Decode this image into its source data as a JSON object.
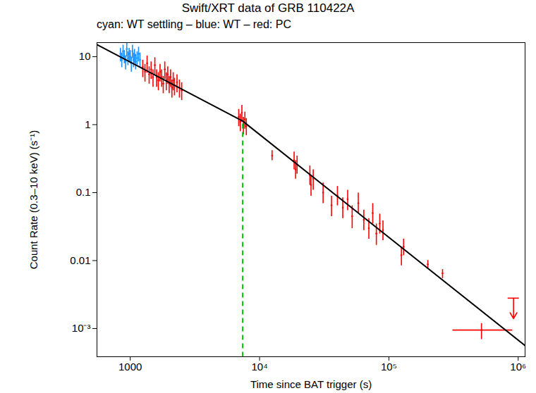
{
  "chart_data": {
    "type": "scatter",
    "title": "Swift/XRT data of GRB 110422A",
    "subtitle": "cyan: WT settling – blue: WT – red: PC",
    "x_label": "Time since BAT trigger (s)",
    "y_label": "Count Rate (0.3–10 keV) (s⁻¹)",
    "log": true,
    "grid": false,
    "xlim": [
      553,
      1130000
    ],
    "ylim": [
      0.000385,
      16.1
    ],
    "xticks": [
      1000,
      {
        "value": 10000,
        "label": "10⁴"
      },
      {
        "value": 100000,
        "label": "10⁵"
      },
      {
        "value": 1000000,
        "label": "10⁶"
      }
    ],
    "yticks": [
      {
        "value": 0.001,
        "label": "10⁻³"
      },
      0.01,
      0.1,
      1,
      10
    ],
    "series": [
      {
        "name": "WT",
        "color": "#1e90ff",
        "points": [
          {
            "x": 840,
            "y": 11,
            "y_low": 8.5,
            "y_high": 13.5
          },
          {
            "x": 860,
            "y": 9,
            "y_low": 7,
            "y_high": 11.5
          },
          {
            "x": 880,
            "y": 12,
            "y_low": 9.5,
            "y_high": 15
          },
          {
            "x": 900,
            "y": 10,
            "y_low": 8,
            "y_high": 12.5
          },
          {
            "x": 920,
            "y": 8.5,
            "y_low": 6.5,
            "y_high": 10.5
          },
          {
            "x": 940,
            "y": 13,
            "y_low": 10,
            "y_high": 16
          },
          {
            "x": 960,
            "y": 9.5,
            "y_low": 7.5,
            "y_high": 12
          },
          {
            "x": 980,
            "y": 11,
            "y_low": 8.5,
            "y_high": 13.5
          },
          {
            "x": 1000,
            "y": 10,
            "y_low": 8,
            "y_high": 12.5
          },
          {
            "x": 1020,
            "y": 8,
            "y_low": 6,
            "y_high": 10
          },
          {
            "x": 1040,
            "y": 12,
            "y_low": 9.5,
            "y_high": 15
          },
          {
            "x": 1060,
            "y": 9,
            "y_low": 7,
            "y_high": 11.5
          },
          {
            "x": 1080,
            "y": 10.5,
            "y_low": 8,
            "y_high": 13
          },
          {
            "x": 1100,
            "y": 8.5,
            "y_low": 6.5,
            "y_high": 11
          },
          {
            "x": 1130,
            "y": 9.5,
            "y_low": 7.5,
            "y_high": 12
          },
          {
            "x": 1160,
            "y": 11,
            "y_low": 8.5,
            "y_high": 14
          },
          {
            "x": 1190,
            "y": 9,
            "y_low": 7,
            "y_high": 11.5
          }
        ]
      },
      {
        "name": "PC",
        "color": "#ff0000",
        "points": [
          {
            "x": 1250,
            "y": 7,
            "y_low": 5,
            "y_high": 9
          },
          {
            "x": 1300,
            "y": 6,
            "y_low": 4.3,
            "y_high": 7.8
          },
          {
            "x": 1350,
            "y": 8,
            "y_low": 5.8,
            "y_high": 10.4
          },
          {
            "x": 1400,
            "y": 5.5,
            "y_low": 4,
            "y_high": 7.2
          },
          {
            "x": 1450,
            "y": 6.5,
            "y_low": 4.7,
            "y_high": 8.5
          },
          {
            "x": 1500,
            "y": 5,
            "y_low": 3.6,
            "y_high": 6.5
          },
          {
            "x": 1550,
            "y": 7.5,
            "y_low": 5.4,
            "y_high": 9.8
          },
          {
            "x": 1600,
            "y": 5,
            "y_low": 3.6,
            "y_high": 6.5
          },
          {
            "x": 1650,
            "y": 4.5,
            "y_low": 3.2,
            "y_high": 5.9
          },
          {
            "x": 1700,
            "y": 6,
            "y_low": 4.3,
            "y_high": 7.8
          },
          {
            "x": 1750,
            "y": 5,
            "y_low": 3.6,
            "y_high": 6.5
          },
          {
            "x": 1800,
            "y": 4,
            "y_low": 2.9,
            "y_high": 5.2
          },
          {
            "x": 1850,
            "y": 6.5,
            "y_low": 4.7,
            "y_high": 8.5
          },
          {
            "x": 1900,
            "y": 4.5,
            "y_low": 3.2,
            "y_high": 5.9
          },
          {
            "x": 1950,
            "y": 5.5,
            "y_low": 4,
            "y_high": 7.2
          },
          {
            "x": 2000,
            "y": 4,
            "y_low": 2.9,
            "y_high": 5.2
          },
          {
            "x": 2050,
            "y": 5,
            "y_low": 3.6,
            "y_high": 6.5
          },
          {
            "x": 2100,
            "y": 3.5,
            "y_low": 2.5,
            "y_high": 4.6
          },
          {
            "x": 2150,
            "y": 4.5,
            "y_low": 3.2,
            "y_high": 5.9
          },
          {
            "x": 2200,
            "y": 3.8,
            "y_low": 2.7,
            "y_high": 4.9
          },
          {
            "x": 2300,
            "y": 4.2,
            "y_low": 3,
            "y_high": 5.5
          },
          {
            "x": 2400,
            "y": 3.5,
            "y_low": 2.5,
            "y_high": 4.6
          },
          {
            "x": 2500,
            "y": 3.2,
            "y_low": 2.3,
            "y_high": 4.2
          },
          {
            "x": 6900,
            "y": 1.3,
            "y_low": 0.95,
            "y_high": 1.7
          },
          {
            "x": 7100,
            "y": 1.1,
            "y_low": 0.8,
            "y_high": 1.45
          },
          {
            "x": 7300,
            "y": 1.5,
            "y_low": 1.1,
            "y_high": 1.95
          },
          {
            "x": 7500,
            "y": 1.0,
            "y_low": 0.72,
            "y_high": 1.3
          },
          {
            "x": 7700,
            "y": 1.2,
            "y_low": 0.87,
            "y_high": 1.55
          },
          {
            "x": 7900,
            "y": 0.95,
            "y_low": 0.7,
            "y_high": 1.25
          },
          {
            "x": 12500,
            "y": 0.35,
            "y_low": 0.3,
            "y_high": 0.42
          },
          {
            "x": 18500,
            "y": 0.3,
            "y_low": 0.22,
            "y_high": 0.4
          },
          {
            "x": 19000,
            "y": 0.22,
            "y_low": 0.16,
            "y_high": 0.3
          },
          {
            "x": 19500,
            "y": 0.26,
            "y_low": 0.19,
            "y_high": 0.35
          },
          {
            "x": 24500,
            "y": 0.18,
            "y_low": 0.13,
            "y_high": 0.25
          },
          {
            "x": 25000,
            "y": 0.13,
            "y_low": 0.09,
            "y_high": 0.18
          },
          {
            "x": 26000,
            "y": 0.16,
            "y_low": 0.11,
            "y_high": 0.22
          },
          {
            "x": 31000,
            "y": 0.1,
            "y_low": 0.07,
            "y_high": 0.14
          },
          {
            "x": 36000,
            "y": 0.065,
            "y_low": 0.045,
            "y_high": 0.09
          },
          {
            "x": 40000,
            "y": 0.09,
            "y_low": 0.065,
            "y_high": 0.125
          },
          {
            "x": 44000,
            "y": 0.06,
            "y_low": 0.042,
            "y_high": 0.085
          },
          {
            "x": 48000,
            "y": 0.08,
            "y_low": 0.055,
            "y_high": 0.11
          },
          {
            "x": 52000,
            "y": 0.045,
            "y_low": 0.03,
            "y_high": 0.065
          },
          {
            "x": 58000,
            "y": 0.07,
            "y_low": 0.05,
            "y_high": 0.1
          },
          {
            "x": 64000,
            "y": 0.04,
            "y_low": 0.028,
            "y_high": 0.056
          },
          {
            "x": 70000,
            "y": 0.03,
            "y_low": 0.021,
            "y_high": 0.042
          },
          {
            "x": 75000,
            "y": 0.05,
            "y_low": 0.035,
            "y_high": 0.07
          },
          {
            "x": 80000,
            "y": 0.025,
            "y_low": 0.017,
            "y_high": 0.035
          },
          {
            "x": 85000,
            "y": 0.035,
            "y_low": 0.025,
            "y_high": 0.049
          },
          {
            "x": 90000,
            "y": 0.028,
            "y_low": 0.02,
            "y_high": 0.039
          },
          {
            "x": 125000,
            "y": 0.012,
            "y_low": 0.0085,
            "y_high": 0.016
          },
          {
            "x": 130000,
            "y": 0.016,
            "y_low": 0.012,
            "y_high": 0.021
          },
          {
            "x": 200000,
            "y": 0.0088,
            "y_low": 0.0075,
            "y_high": 0.0102
          },
          {
            "x": 260000,
            "y": 0.0065,
            "y_low": 0.0055,
            "y_high": 0.0075
          },
          {
            "x": 520000,
            "y": 0.00095,
            "y_low": 0.0007,
            "y_high": 0.0012,
            "x_low": 310000,
            "x_high": 900000
          }
        ]
      }
    ],
    "upper_limits": {
      "color": "#ff0000",
      "x": [
        920000
      ],
      "values": [
        0.0028
      ]
    },
    "model": {
      "color": "#000000",
      "x": [
        553,
        7400,
        1130000
      ],
      "values": [
        15,
        1.13,
        0.00056
      ]
    },
    "break": {
      "x": 7400,
      "color": "#00cc00",
      "line_style": "dashed"
    }
  }
}
